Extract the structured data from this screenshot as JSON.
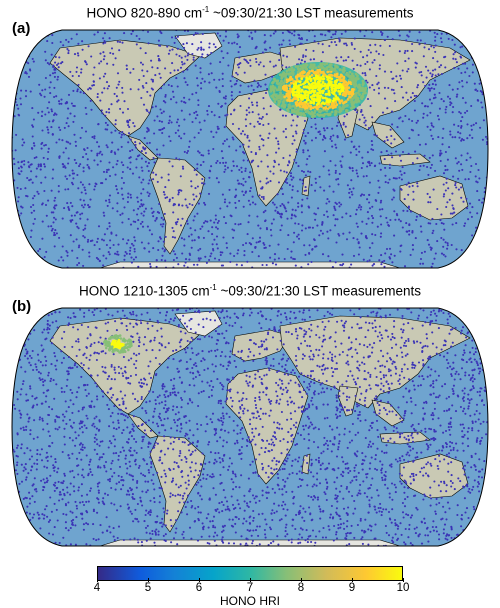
{
  "panels": [
    {
      "tag": "(a)",
      "title_main": "HONO 820-890 cm",
      "title_sup": "-1",
      "title_rest": " ~09:30/21:30 LST measurements",
      "hotspot": "middle-east-asia"
    },
    {
      "tag": "(b)",
      "title_main": "HONO 1210-1305 cm",
      "title_sup": "-1",
      "title_rest": " ~09:30/21:30 LST measurements",
      "hotspot": "north-america"
    }
  ],
  "colorbar": {
    "label": "HONO HRI",
    "ticks": [
      "4",
      "5",
      "6",
      "7",
      "8",
      "9",
      "10"
    ],
    "range": [
      4,
      10
    ],
    "colors": [
      "#352a87",
      "#0f5cdd",
      "#1481d6",
      "#06a4ca",
      "#2eb7a4",
      "#87bf77",
      "#d1bb59",
      "#fec832",
      "#f9fb0e"
    ]
  },
  "colors": {
    "ocean": "#6fa4cf",
    "land": "#c9c9b4",
    "dot": "#3b33b6",
    "coast": "#000000",
    "ice": "#ffffff"
  }
}
